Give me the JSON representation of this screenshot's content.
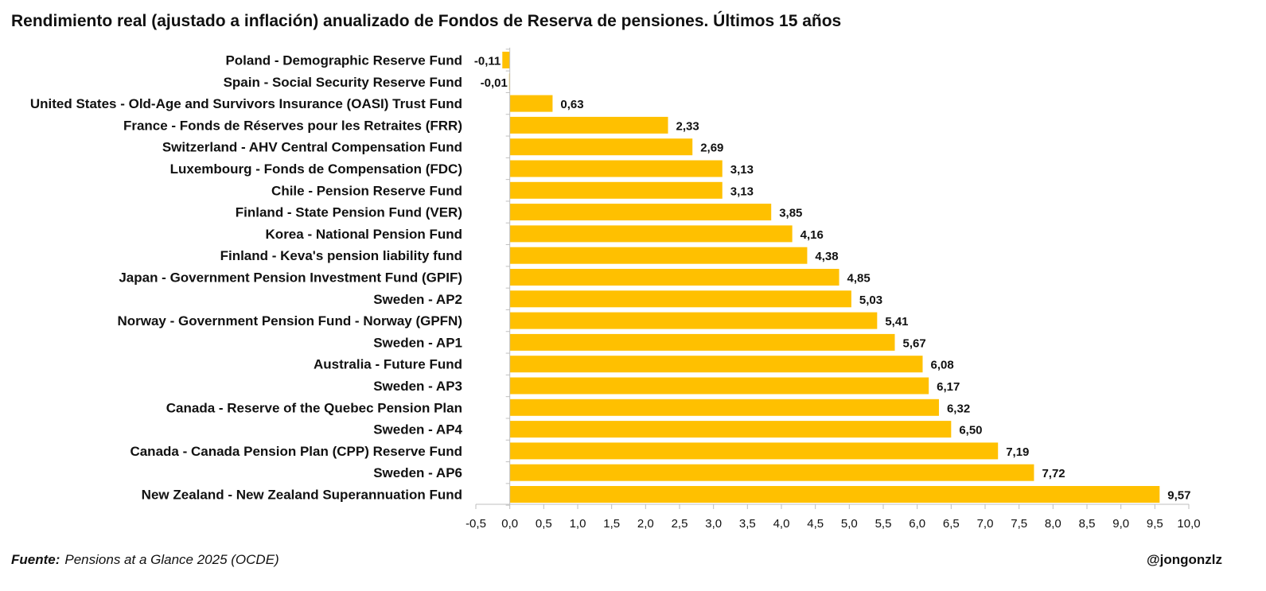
{
  "title": "Rendimiento real (ajustado a inflación) anualizado de Fondos de Reserva de pensiones. Últimos 15 años",
  "footer": {
    "source_label": "Fuente:",
    "source_text": "Pensions at a Glance 2025 (OCDE)",
    "credit": "@jongonzlz"
  },
  "colors": {
    "bar": "#FFC000",
    "axis": "#bfbfbf",
    "text": "#111111"
  },
  "chart_data": {
    "type": "bar",
    "orientation": "horizontal",
    "categories": [
      "Poland - Demographic Reserve Fund",
      "Spain - Social Security Reserve Fund",
      "United States - Old-Age and Survivors Insurance (OASI) Trust Fund",
      "France - Fonds de Réserves pour les Retraites (FRR)",
      "Switzerland - AHV Central Compensation Fund",
      "Luxembourg - Fonds de Compensation (FDC)",
      "Chile - Pension Reserve Fund",
      "Finland - State Pension Fund (VER)",
      "Korea - National Pension Fund",
      "Finland - Keva's pension liability fund",
      "Japan - Government Pension Investment Fund (GPIF)",
      "Sweden - AP2",
      "Norway - Government Pension Fund - Norway (GPFN)",
      "Sweden - AP1",
      "Australia - Future Fund",
      "Sweden - AP3",
      "Canada - Reserve of the Quebec Pension Plan",
      "Sweden - AP4",
      "Canada - Canada Pension Plan (CPP) Reserve Fund",
      "Sweden - AP6",
      "New Zealand - New Zealand Superannuation Fund"
    ],
    "values": [
      -0.11,
      -0.01,
      0.63,
      2.33,
      2.69,
      3.13,
      3.13,
      3.85,
      4.16,
      4.38,
      4.85,
      5.03,
      5.41,
      5.67,
      6.08,
      6.17,
      6.32,
      6.5,
      7.19,
      7.72,
      9.57
    ],
    "value_labels": [
      "-0,11",
      "-0,01",
      "0,63",
      "2,33",
      "2,69",
      "3,13",
      "3,13",
      "3,85",
      "4,16",
      "4,38",
      "4,85",
      "5,03",
      "5,41",
      "5,67",
      "6,08",
      "6,17",
      "6,32",
      "6,50",
      "7,19",
      "7,72",
      "9,57"
    ],
    "xlim": [
      -0.5,
      10.0
    ],
    "xticks": [
      -0.5,
      0.0,
      0.5,
      1.0,
      1.5,
      2.0,
      2.5,
      3.0,
      3.5,
      4.0,
      4.5,
      5.0,
      5.5,
      6.0,
      6.5,
      7.0,
      7.5,
      8.0,
      8.5,
      9.0,
      9.5,
      10.0
    ],
    "xtick_labels": [
      "-0,5",
      "0,0",
      "0,5",
      "1,0",
      "1,5",
      "2,0",
      "2,5",
      "3,0",
      "3,5",
      "4,0",
      "4,5",
      "5,0",
      "5,5",
      "6,0",
      "6,5",
      "7,0",
      "7,5",
      "8,0",
      "8,5",
      "9,0",
      "9,5",
      "10,0"
    ],
    "grid": false,
    "legend": "none"
  }
}
